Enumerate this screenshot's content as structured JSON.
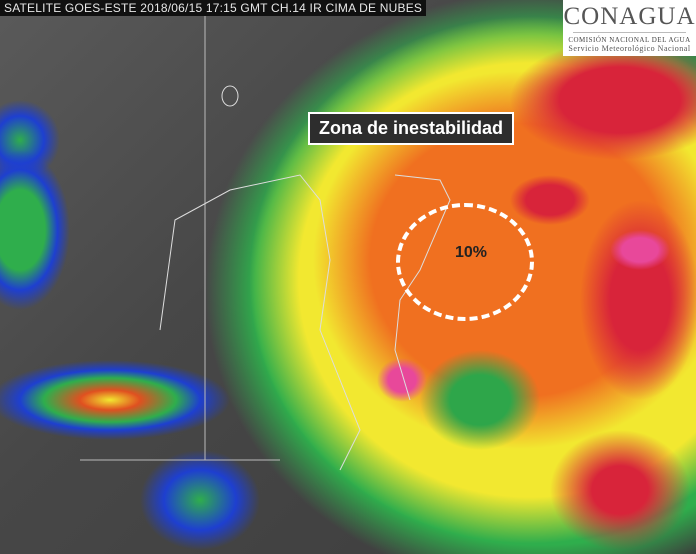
{
  "header": {
    "caption": "SATELITE GOES-ESTE 2018/06/15 17:15 GMT CH.14 IR CIMA DE NUBES"
  },
  "logo": {
    "brand": "CONAGUA",
    "line1": "COMISIÓN NACIONAL DEL AGUA",
    "line2": "Servicio Meteorológico Nacional"
  },
  "annotations": {
    "zone_label": "Zona de inestabilidad",
    "probability": "10%"
  },
  "colors": {
    "clear": "#474747",
    "low": "#1e3fd0",
    "mid": "#2fae4c",
    "high": "#f2e830",
    "higher": "#f07020",
    "very_high": "#d8243a",
    "extreme": "#e8489a"
  }
}
